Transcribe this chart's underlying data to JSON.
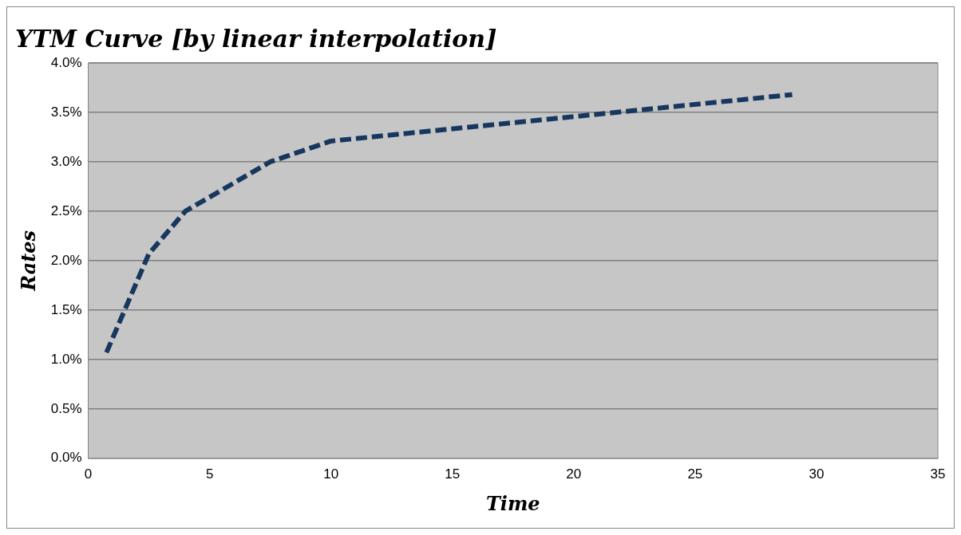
{
  "chart_data": {
    "type": "line",
    "title": "YTM Curve [by linear interpolation]",
    "xlabel": "Time",
    "ylabel": "Rates",
    "series": [
      {
        "color": "#17375e",
        "x": [
          0.75,
          2.5,
          4,
          7.5,
          10,
          29
        ],
        "values": [
          1.07,
          2.07,
          2.5,
          3.0,
          3.21,
          3.68
        ]
      }
    ],
    "xlim": [
      0,
      35
    ],
    "xticks": [
      0,
      5,
      10,
      15,
      20,
      25,
      30,
      35
    ],
    "ylim": [
      0,
      4
    ],
    "yticks": [
      {
        "value": 0,
        "label": "0.0%"
      },
      {
        "value": 0.5,
        "label": "0.5%"
      },
      {
        "value": 1,
        "label": "1.0%"
      },
      {
        "value": 1.5,
        "label": "1.5%"
      },
      {
        "value": 2,
        "label": "2.0%"
      },
      {
        "value": 2.5,
        "label": "2.5%"
      },
      {
        "value": 3,
        "label": "3.0%"
      },
      {
        "value": 3.5,
        "label": "3.5%"
      },
      {
        "value": 4,
        "label": "4.0%"
      }
    ],
    "grid": "y",
    "legend": false,
    "marker": "none",
    "line_style": "dashed"
  }
}
